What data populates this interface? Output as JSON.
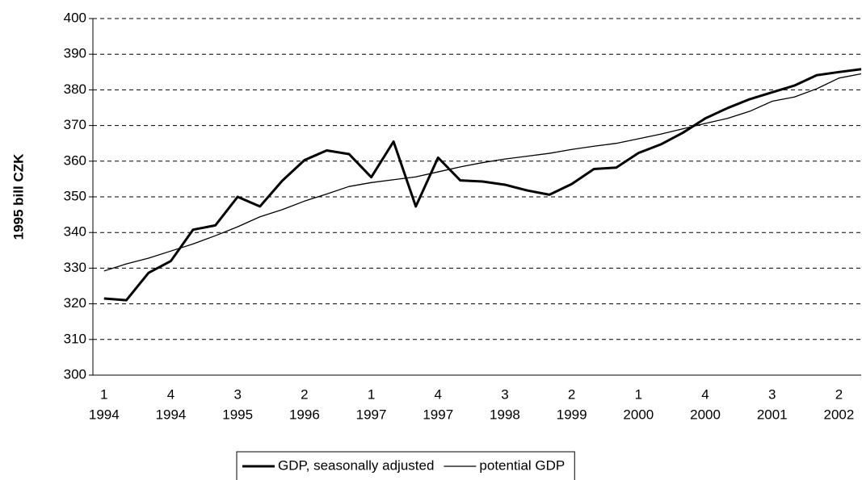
{
  "chart_data": {
    "type": "line",
    "y_label": "1995 bill CZK",
    "categories": [
      [
        "1",
        "1994"
      ],
      null,
      null,
      [
        "4",
        "1994"
      ],
      null,
      null,
      [
        "3",
        "1995"
      ],
      null,
      null,
      [
        "2",
        "1996"
      ],
      null,
      null,
      [
        "1",
        "1997"
      ],
      null,
      null,
      [
        "4",
        "1997"
      ],
      null,
      null,
      [
        "3",
        "1998"
      ],
      null,
      null,
      [
        "2",
        "1999"
      ],
      null,
      null,
      [
        "1",
        "2000"
      ],
      null,
      null,
      [
        "4",
        "2000"
      ],
      null,
      null,
      [
        "3",
        "2001"
      ],
      null,
      null,
      [
        "2",
        "2002"
      ],
      null
    ],
    "series": [
      {
        "name": "GDP, seasonally adjusted",
        "color": "#000000",
        "width": 3,
        "values": [
          321.5,
          321,
          328.7,
          332,
          340.8,
          342,
          350,
          347.3,
          354.5,
          360.3,
          363,
          362,
          355.5,
          365.5,
          347.3,
          361,
          354.6,
          354.3,
          353.4,
          351.8,
          350.6,
          353.6,
          357.8,
          358.2,
          362.3,
          364.7,
          368,
          372,
          374.9,
          377.4,
          379.3,
          381.2,
          384.1,
          385,
          385.8
        ]
      },
      {
        "name": "potential GDP",
        "color": "#000000",
        "width": 1.3,
        "values": [
          329.2,
          331.2,
          332.8,
          334.8,
          336.8,
          339.1,
          341.6,
          344.4,
          346.4,
          348.8,
          350.8,
          352.9,
          354,
          354.8,
          355.6,
          357,
          358.4,
          359.6,
          360.6,
          361.4,
          362.2,
          363.3,
          364.2,
          365,
          366.3,
          367.6,
          369.1,
          370.6,
          372,
          374,
          376.8,
          378,
          380.3,
          383.3,
          384.5
        ]
      }
    ],
    "ylim": [
      300,
      400
    ],
    "yticks": [
      300,
      310,
      320,
      330,
      340,
      350,
      360,
      370,
      380,
      390,
      400
    ],
    "grid": true,
    "legend": "bottom"
  }
}
